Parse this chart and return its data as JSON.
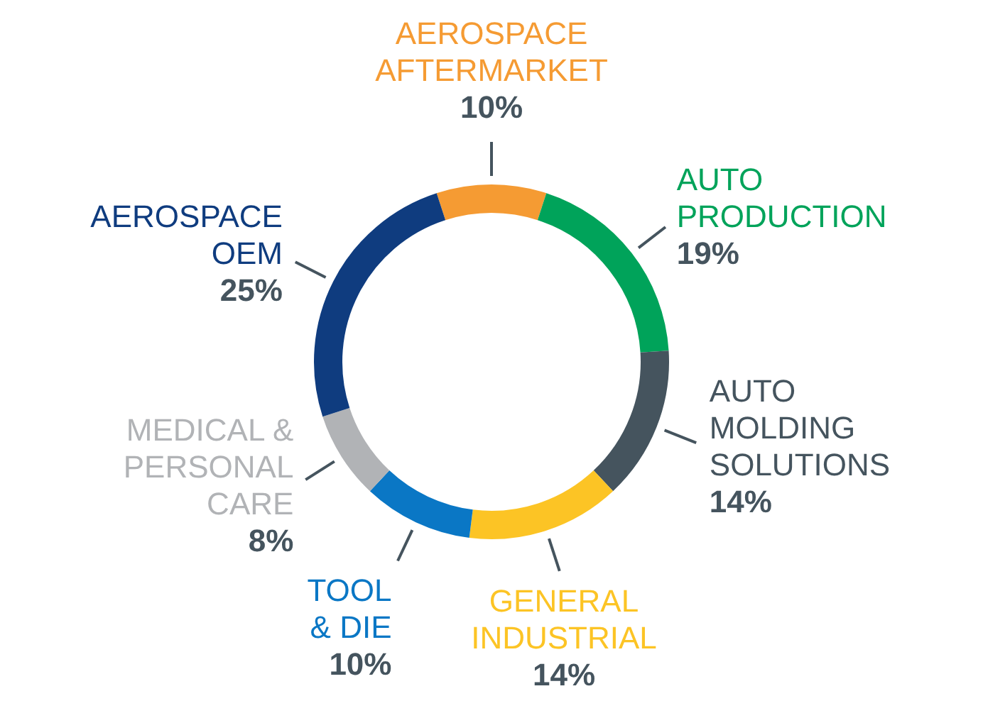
{
  "chart_data": {
    "type": "donut",
    "categories": [
      "AEROSPACE\nAFTERMARKET",
      "AUTO\nPRODUCTION",
      "AUTO\nMOLDING\nSOLUTIONS",
      "GENERAL\nINDUSTRIAL",
      "TOOL\n& DIE",
      "MEDICAL &\nPERSONAL\nCARE",
      "AEROSPACE\nOEM"
    ],
    "values": [
      10,
      19,
      14,
      14,
      10,
      8,
      25
    ],
    "colors": [
      "#f59b33",
      "#00a35a",
      "#45545e",
      "#fcc425",
      "#0a77c5",
      "#b1b3b6",
      "#0f3c7f"
    ],
    "value_labels": [
      "10%",
      "19%",
      "14%",
      "14%",
      "10%",
      "8%",
      "25%"
    ],
    "legend": false
  }
}
